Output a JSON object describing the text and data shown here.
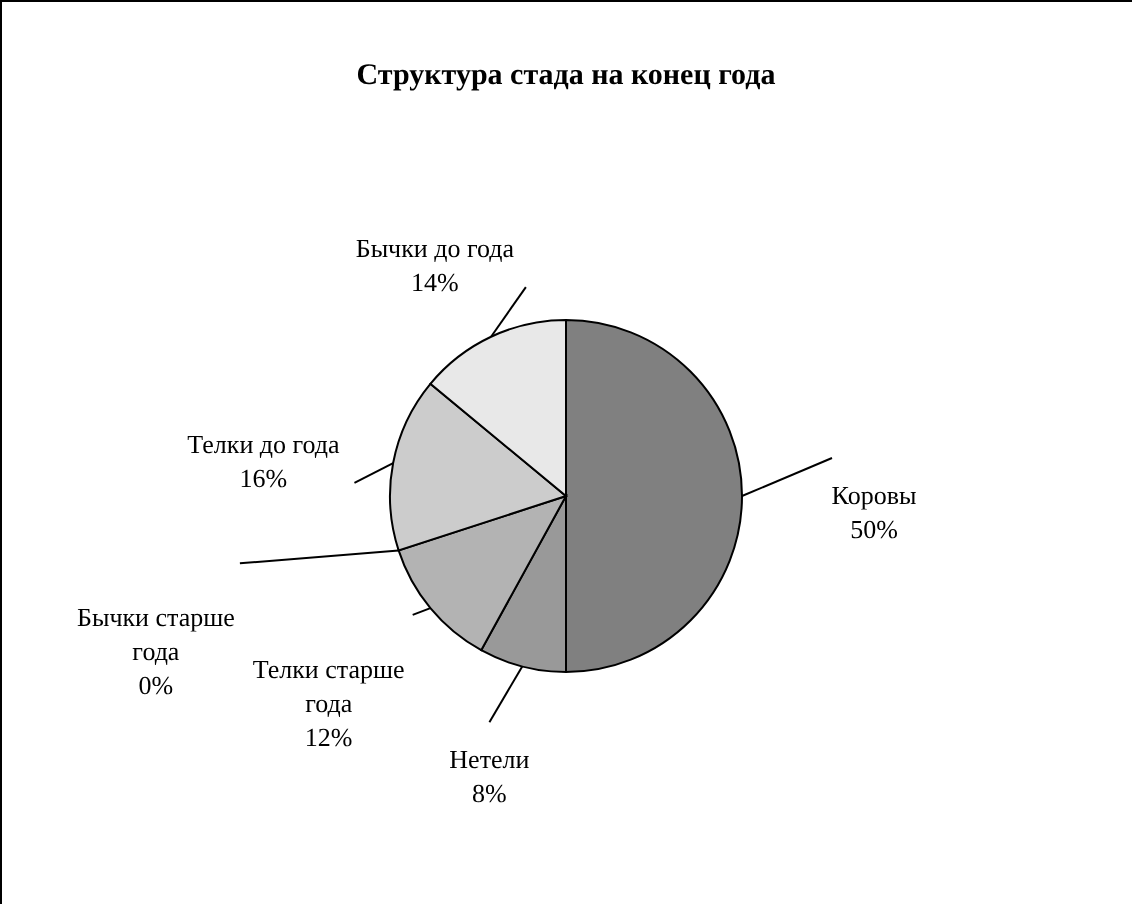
{
  "chart_data": {
    "type": "pie",
    "title": "Структура стада на конец года",
    "categories": [
      "Коровы",
      "Нетели",
      "Телки старше года",
      "Бычки старше года",
      "Телки до года",
      "Бычки до года"
    ],
    "values": [
      50,
      8,
      12,
      0,
      16,
      14
    ],
    "value_labels": [
      "50%",
      "8%",
      "12%",
      "0%",
      "16%",
      "14%"
    ],
    "colors": [
      "#808080",
      "#999999",
      "#b3b3b3",
      "#c0c0c0",
      "#cccccc",
      "#e8e8e8"
    ]
  }
}
